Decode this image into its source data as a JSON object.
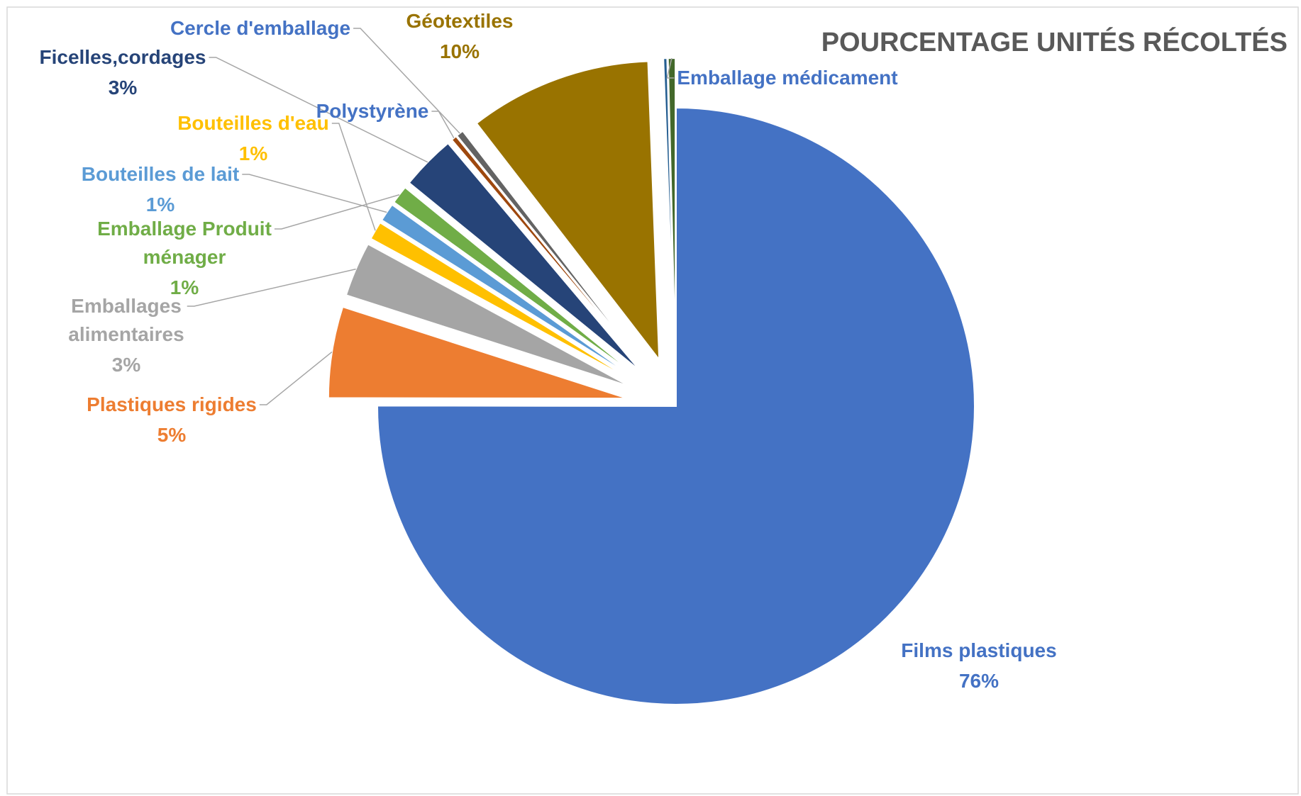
{
  "chart_data": {
    "type": "pie",
    "title": "POURCENTAGE UNITÉS RÉCOLTÉS",
    "categories": [
      "Films plastiques",
      "Plastiques rigides",
      "Emballages alimentaires",
      "Bouteilles d'eau",
      "Bouteilles de lait",
      "Emballage Produit ménager",
      "Ficelles,cordages",
      "Polystyrène",
      "Cercle d'emballage",
      "Géotextiles",
      null,
      "Emballage médicament"
    ],
    "values": [
      76,
      5,
      3,
      1,
      1,
      1,
      3,
      0.3,
      0.4,
      10,
      0.2,
      0.4
    ],
    "value_labels": [
      "76%",
      "5%",
      "3%",
      "1%",
      "1%",
      "1%",
      "3%",
      null,
      null,
      "10%",
      null,
      null
    ],
    "colors": [
      "#4472c4",
      "#ed7d31",
      "#a5a5a5",
      "#ffc000",
      "#5b9bd5",
      "#70ad47",
      "#264478",
      "#9e480e",
      "#636363",
      "#997300",
      "#255e91",
      "#43682b"
    ],
    "label_colors": [
      "#4472c4",
      "#ed7d31",
      "#a5a5a5",
      "#ffc000",
      "#5b9bd5",
      "#70ad47",
      "#264478",
      "#4472c4",
      "#4472c4",
      "#997300",
      "#255e91",
      "#4472c4"
    ]
  }
}
